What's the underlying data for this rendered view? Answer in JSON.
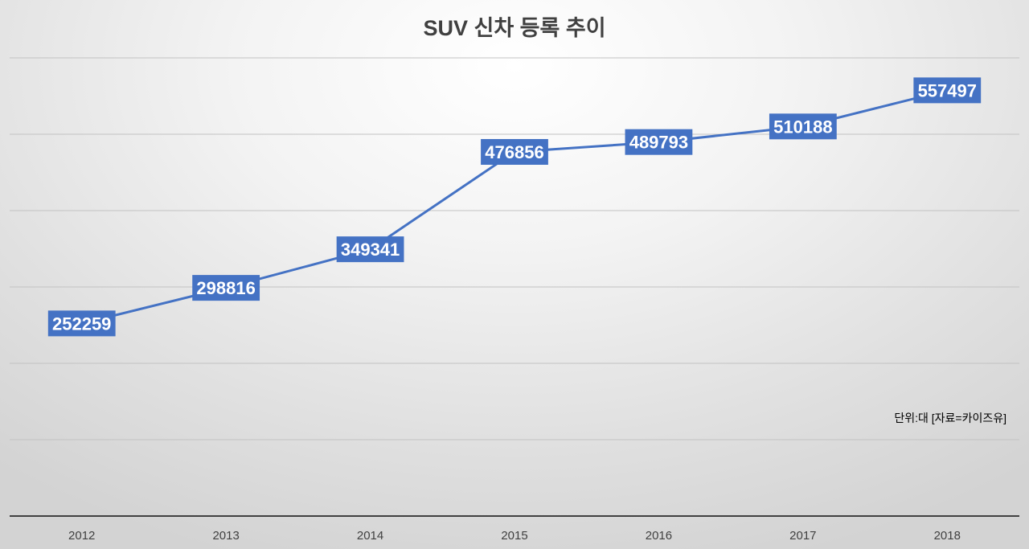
{
  "chart_data": {
    "type": "line",
    "title": "SUV 신차 등록 추이",
    "annotation": "단위:대 [자료=카이즈유]",
    "categories": [
      "2012",
      "2013",
      "2014",
      "2015",
      "2016",
      "2017",
      "2018"
    ],
    "series": [
      {
        "values": [
          252259,
          298816,
          349341,
          476856,
          489793,
          510188,
          557497
        ]
      }
    ],
    "ylim": [
      0,
      600000
    ],
    "y_grid_step": 100000,
    "grid": true,
    "legend": "none",
    "data_labels": true
  },
  "colors": {
    "line": "#4472C4",
    "label_bg": "#4472C4",
    "label_text": "#FFFFFF",
    "grid": "#C2C2C2",
    "axis": "#404040"
  }
}
